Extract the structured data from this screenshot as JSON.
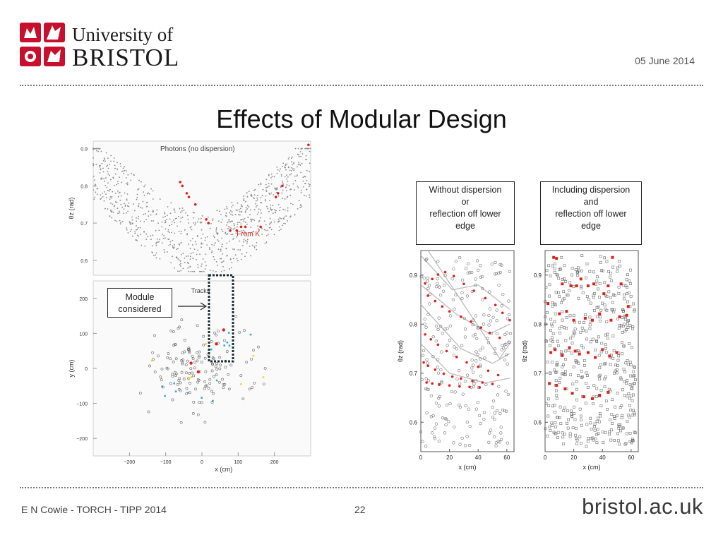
{
  "header": {
    "logo_line1": "University of",
    "logo_line2": "BRISTOL",
    "date": "05 June 2014",
    "title": "Effects of Modular Design"
  },
  "footer": {
    "left": "E N Cowie - TORCH - TIPP 2014",
    "page": "22",
    "brand": "bristol.ac.uk"
  },
  "callouts": {
    "without": [
      "Without dispersion",
      "or",
      "reflection off lower",
      "edge"
    ],
    "including": [
      "Including dispersion",
      "and",
      "reflection off lower",
      "edge"
    ],
    "module": [
      "Module",
      "considered"
    ]
  },
  "colors": {
    "accent_red": "#e0201b",
    "logo_red": "#c8102e",
    "cyan": "#3aa8d8",
    "yellow": "#f2d42a"
  },
  "chart_data": [
    {
      "type": "scatter",
      "title": "Photons (no dispersion)",
      "ylabel": "θz (rad)",
      "yticks": [
        "0.9",
        "0.8",
        "0.7",
        "0.6"
      ],
      "ylim": [
        0.56,
        0.92
      ],
      "annotation": "From K",
      "series": [
        {
          "color": "#e0201b",
          "x": [
            0.4,
            0.41,
            0.43,
            0.44,
            0.47,
            0.52,
            0.53,
            0.63,
            0.66,
            0.68,
            0.7,
            0.77,
            0.84,
            0.85,
            0.87,
            0.99
          ],
          "y": [
            0.81,
            0.8,
            0.78,
            0.77,
            0.75,
            0.71,
            0.7,
            0.68,
            0.68,
            0.69,
            0.69,
            0.69,
            0.77,
            0.78,
            0.8,
            0.91
          ]
        }
      ]
    },
    {
      "type": "scatter",
      "title": "Tracks",
      "xlabel": "x (cm)",
      "ylabel": "y (cm)",
      "xticks": [
        "−200",
        "−100",
        "0",
        "100",
        "200"
      ],
      "yticks": [
        "200",
        "100",
        "0",
        "−100",
        "−200"
      ],
      "xlim": [
        -300,
        300
      ],
      "ylim": [
        -250,
        250
      ]
    },
    {
      "type": "scatter",
      "xlabel": "x (cm)",
      "ylabel": "θz (rad)",
      "xticks": [
        "0",
        "20",
        "40",
        "60"
      ],
      "yticks": [
        "0.9",
        "0.8",
        "0.7",
        "0.6"
      ],
      "xlim": [
        0,
        65
      ],
      "ylim": [
        0.54,
        0.95
      ],
      "series": [
        {
          "color": "#e0201b",
          "x": [
            3,
            8,
            12,
            17,
            23,
            30,
            37,
            45,
            52,
            57,
            62,
            5,
            10,
            15,
            20,
            28,
            35,
            42,
            48,
            55,
            3,
            7,
            12,
            18,
            25,
            32,
            40,
            47,
            54,
            2,
            5,
            10,
            16,
            22,
            28,
            36,
            43,
            50,
            4,
            8,
            13,
            20,
            27,
            34,
            41
          ],
          "y": [
            0.883,
            0.892,
            0.901,
            0.906,
            0.898,
            0.882,
            0.868,
            0.853,
            0.839,
            0.823,
            0.808,
            0.858,
            0.847,
            0.836,
            0.826,
            0.815,
            0.805,
            0.793,
            0.782,
            0.772,
            0.779,
            0.769,
            0.758,
            0.745,
            0.733,
            0.722,
            0.713,
            0.705,
            0.696,
            0.722,
            0.715,
            0.707,
            0.699,
            0.693,
            0.689,
            0.684,
            0.681,
            0.678,
            0.681,
            0.679,
            0.677,
            0.675,
            0.673,
            0.672,
            0.671
          ]
        }
      ]
    },
    {
      "type": "scatter",
      "xlabel": "x (cm)",
      "ylabel": "θz (rad)",
      "xticks": [
        "0",
        "20",
        "40",
        "60"
      ],
      "yticks": [
        "0.9",
        "0.8",
        "0.7",
        "0.6"
      ],
      "xlim": [
        0,
        65
      ],
      "ylim": [
        0.54,
        0.95
      ],
      "series": [
        {
          "color": "#e0201b",
          "x": [
            6,
            8,
            12,
            18,
            22,
            25,
            30,
            34,
            41,
            44,
            47,
            53,
            58,
            2,
            10,
            15,
            20,
            28,
            33,
            38,
            46,
            52,
            57,
            4,
            7,
            12,
            17,
            21,
            24,
            30,
            35,
            40,
            45,
            50,
            3,
            8,
            14,
            19,
            27,
            33,
            38,
            44
          ],
          "y": [
            0.936,
            0.934,
            0.882,
            0.878,
            0.878,
            0.892,
            0.878,
            0.882,
            0.862,
            0.878,
            0.936,
            0.882,
            0.836,
            0.842,
            0.821,
            0.826,
            0.808,
            0.812,
            0.808,
            0.821,
            0.808,
            0.815,
            0.818,
            0.742,
            0.748,
            0.736,
            0.752,
            0.745,
            0.739,
            0.742,
            0.732,
            0.748,
            0.735,
            0.742,
            0.679,
            0.675,
            0.668,
            0.659,
            0.652,
            0.648,
            0.655,
            0.661
          ]
        }
      ]
    }
  ]
}
